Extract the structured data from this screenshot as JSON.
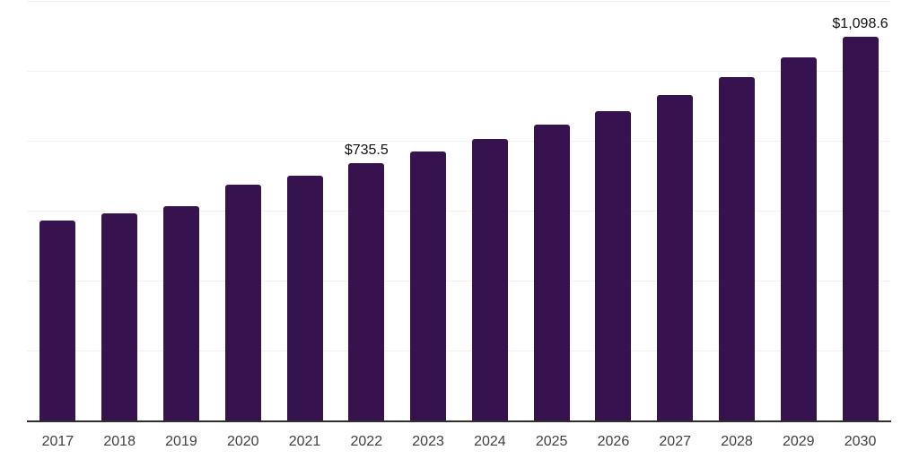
{
  "chart_data": {
    "type": "bar",
    "title": "",
    "xlabel": "",
    "ylabel": "",
    "categories": [
      "2017",
      "2018",
      "2019",
      "2020",
      "2021",
      "2022",
      "2023",
      "2024",
      "2025",
      "2026",
      "2027",
      "2028",
      "2029",
      "2030"
    ],
    "values": [
      571.0,
      592.3,
      613.8,
      674.2,
      699.8,
      735.5,
      768.1,
      804.0,
      845.5,
      885.1,
      930.2,
      983.2,
      1038.7,
      1098.6
    ],
    "value_labels": [
      {
        "category": "2022",
        "text": "$735.5"
      },
      {
        "category": "2030",
        "text": "$1,098.6"
      }
    ],
    "ylim": [
      0,
      1200
    ],
    "grid_step": 200,
    "grid": "horizontal",
    "legend": "none",
    "y_tick_labels_visible": false,
    "colors": {
      "bar": "#36124f",
      "grid": "#f1f1f3",
      "axis": "#2e2e2e",
      "x_tick_label": "#404040",
      "value_label": "#111111",
      "background": "#ffffff"
    }
  }
}
